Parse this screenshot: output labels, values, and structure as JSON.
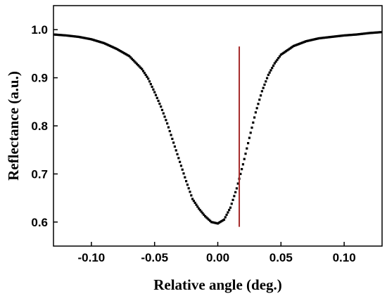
{
  "chart_data": {
    "type": "scatter",
    "title": "",
    "xlabel": "Relative angle (deg.)",
    "ylabel": "Reflectance (a.u.)",
    "xlim": [
      -0.13,
      0.13
    ],
    "ylim": [
      0.55,
      1.05
    ],
    "x_ticks": [
      -0.1,
      -0.05,
      0.0,
      0.05,
      0.1
    ],
    "x_tick_labels": [
      "-0.10",
      "-0.05",
      "0.00",
      "0.05",
      "0.10"
    ],
    "y_ticks": [
      0.6,
      0.7,
      0.8,
      0.9,
      1.0
    ],
    "y_tick_labels": [
      "0.6",
      "0.7",
      "0.8",
      "0.9",
      "1.0"
    ],
    "grid": false,
    "legend": "none",
    "marker_color": "#000000",
    "series": [
      {
        "x": [
          -0.13,
          -0.12,
          -0.11,
          -0.1,
          -0.09,
          -0.08,
          -0.07,
          -0.06,
          -0.055,
          -0.05,
          -0.045,
          -0.04,
          -0.035,
          -0.03,
          -0.025,
          -0.02,
          -0.015,
          -0.01,
          -0.005,
          0.0,
          0.005,
          0.01,
          0.015,
          0.02,
          0.025,
          0.03,
          0.035,
          0.04,
          0.045,
          0.05,
          0.06,
          0.07,
          0.08,
          0.09,
          0.1,
          0.11,
          0.12,
          0.13
        ],
        "y": [
          0.99,
          0.988,
          0.985,
          0.98,
          0.972,
          0.96,
          0.945,
          0.918,
          0.898,
          0.87,
          0.84,
          0.805,
          0.765,
          0.725,
          0.685,
          0.648,
          0.628,
          0.612,
          0.6,
          0.597,
          0.605,
          0.63,
          0.67,
          0.72,
          0.775,
          0.828,
          0.872,
          0.906,
          0.93,
          0.948,
          0.966,
          0.976,
          0.982,
          0.985,
          0.988,
          0.99,
          0.993,
          0.995
        ]
      }
    ],
    "annotations": [
      {
        "type": "vline",
        "x": 0.017,
        "y_from": 0.59,
        "y_to": 0.965,
        "color": "#a52a2a"
      }
    ]
  }
}
